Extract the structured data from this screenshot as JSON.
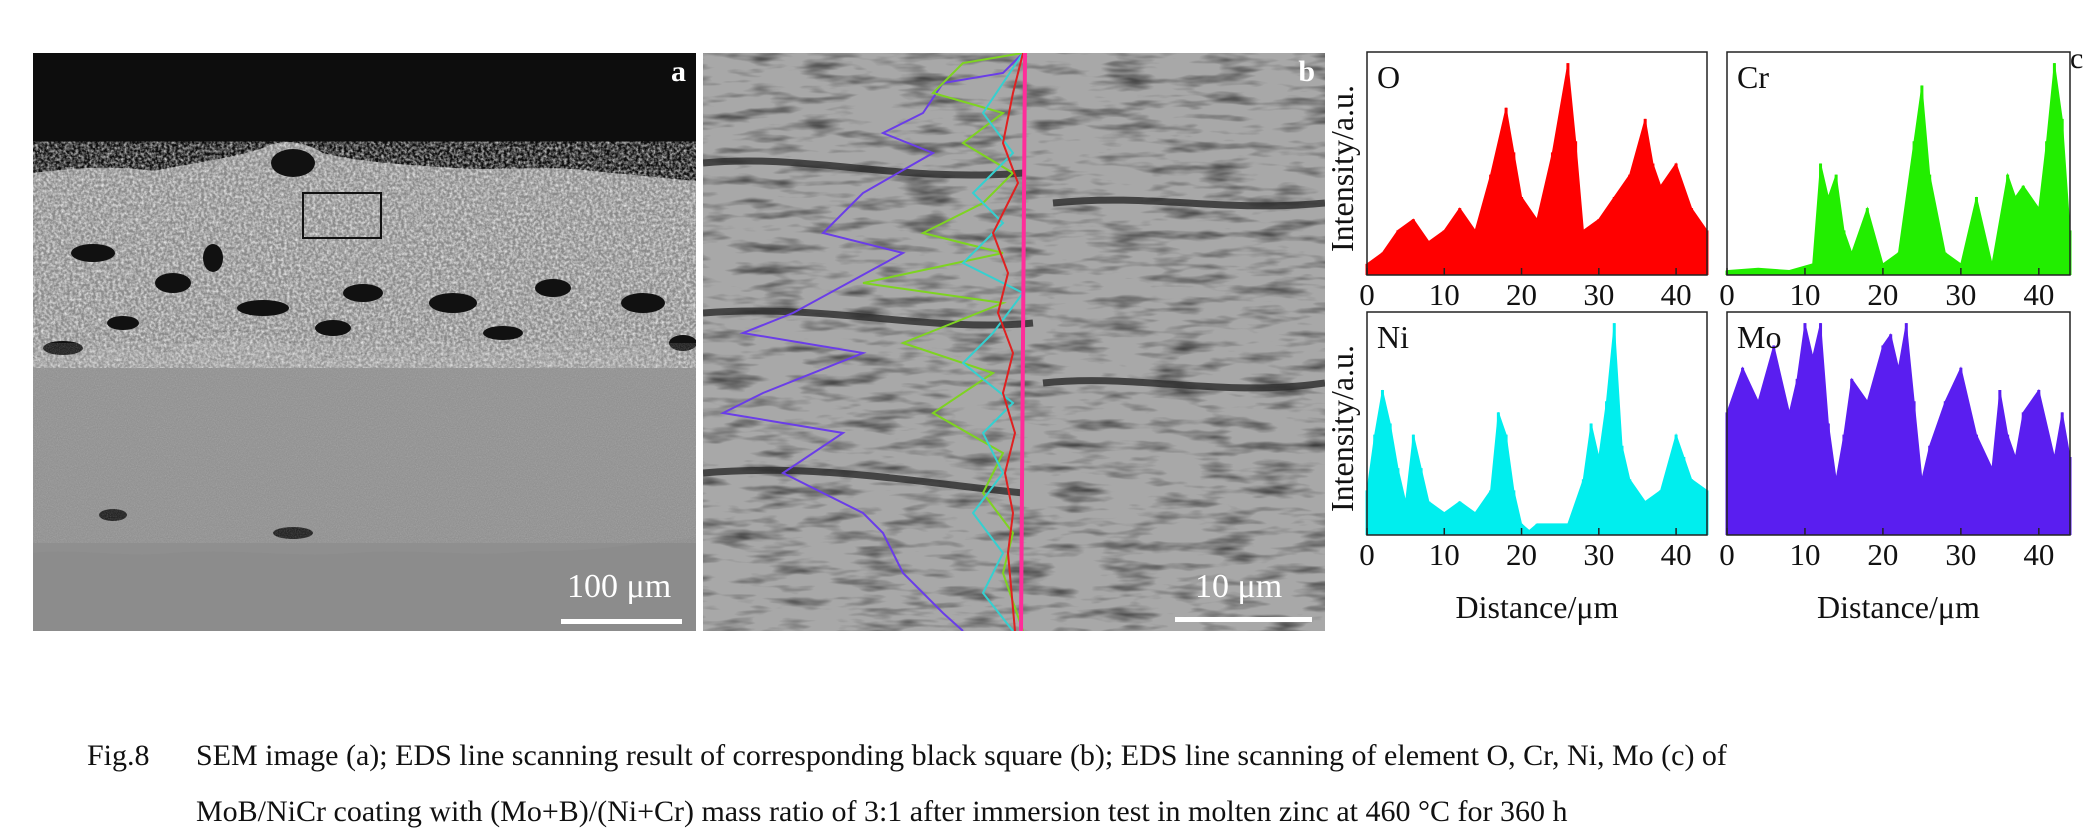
{
  "panel_a": {
    "letter": "a",
    "scale_label": "100 μm"
  },
  "panel_b": {
    "letter": "b",
    "scale_label": "10 μm"
  },
  "panel_c": {
    "letter": "c"
  },
  "chart_data": [
    {
      "type": "area",
      "element": "O",
      "color": "#ff0000",
      "ylabel": "Intensity/a.u.",
      "xlabel": "",
      "xlim": [
        0,
        44
      ],
      "xticks": [
        0,
        10,
        20,
        30,
        40
      ],
      "x": [
        0,
        2,
        4,
        6,
        8,
        10,
        12,
        14,
        16,
        18,
        19,
        20,
        22,
        24,
        26,
        27,
        28,
        30,
        32,
        34,
        36,
        37,
        38,
        40,
        42,
        44
      ],
      "y": [
        0.05,
        0.1,
        0.2,
        0.25,
        0.15,
        0.2,
        0.3,
        0.2,
        0.45,
        0.75,
        0.55,
        0.35,
        0.25,
        0.55,
        0.95,
        0.6,
        0.2,
        0.25,
        0.35,
        0.45,
        0.7,
        0.5,
        0.4,
        0.5,
        0.3,
        0.2
      ]
    },
    {
      "type": "area",
      "element": "Cr",
      "color": "#22ee00",
      "ylabel": "",
      "xlabel": "",
      "xlim": [
        0,
        44
      ],
      "xticks": [
        0,
        10,
        20,
        30,
        40
      ],
      "x": [
        0,
        4,
        8,
        11,
        12,
        13,
        14,
        15,
        16,
        18,
        20,
        22,
        24,
        25,
        26,
        28,
        30,
        32,
        34,
        36,
        37,
        38,
        40,
        41,
        42,
        43,
        44
      ],
      "y": [
        0.02,
        0.03,
        0.02,
        0.05,
        0.5,
        0.35,
        0.45,
        0.2,
        0.1,
        0.3,
        0.05,
        0.1,
        0.6,
        0.85,
        0.45,
        0.1,
        0.05,
        0.35,
        0.05,
        0.45,
        0.35,
        0.4,
        0.3,
        0.6,
        0.95,
        0.7,
        0.2
      ]
    },
    {
      "type": "area",
      "element": "Ni",
      "color": "#00eeee",
      "ylabel": "Intensity/a.u.",
      "xlabel": "Distance/μm",
      "xlim": [
        0,
        44
      ],
      "xticks": [
        0,
        10,
        20,
        30,
        40
      ],
      "x": [
        0,
        1,
        2,
        3,
        4,
        5,
        6,
        7,
        8,
        10,
        12,
        14,
        16,
        17,
        18,
        19,
        20,
        21,
        22,
        24,
        26,
        28,
        29,
        30,
        31,
        32,
        33,
        34,
        36,
        38,
        40,
        41,
        42,
        44
      ],
      "y": [
        0.2,
        0.45,
        0.65,
        0.5,
        0.3,
        0.15,
        0.45,
        0.3,
        0.15,
        0.1,
        0.15,
        0.1,
        0.2,
        0.55,
        0.45,
        0.2,
        0.05,
        0.02,
        0.05,
        0.05,
        0.05,
        0.25,
        0.5,
        0.35,
        0.6,
        0.95,
        0.4,
        0.25,
        0.15,
        0.2,
        0.45,
        0.35,
        0.25,
        0.2
      ]
    },
    {
      "type": "area",
      "element": "Mo",
      "color": "#5a1ef0",
      "ylabel": "",
      "xlabel": "Distance/μm",
      "xlim": [
        0,
        44
      ],
      "xticks": [
        0,
        10,
        20,
        30,
        40
      ],
      "x": [
        0,
        2,
        4,
        6,
        8,
        9,
        10,
        11,
        12,
        13,
        14,
        15,
        16,
        18,
        20,
        21,
        22,
        23,
        24,
        25,
        26,
        28,
        30,
        32,
        34,
        35,
        36,
        37,
        38,
        40,
        42,
        43,
        44
      ],
      "y": [
        0.55,
        0.75,
        0.6,
        0.85,
        0.55,
        0.7,
        0.95,
        0.8,
        0.95,
        0.5,
        0.25,
        0.45,
        0.7,
        0.6,
        0.85,
        0.9,
        0.75,
        0.95,
        0.6,
        0.25,
        0.4,
        0.6,
        0.75,
        0.45,
        0.3,
        0.65,
        0.45,
        0.35,
        0.55,
        0.65,
        0.35,
        0.55,
        0.35
      ]
    }
  ],
  "caption": {
    "fig_no": "Fig.8",
    "line1": "SEM image (a); EDS line scanning result of corresponding black square (b); EDS line scanning of element O, Cr, Ni, Mo (c) of",
    "line2": "MoB/NiCr coating with (Mo+B)/(Ni+Cr) mass ratio of 3:1 after immersion test in molten zinc at 460 °C for 360 h"
  }
}
